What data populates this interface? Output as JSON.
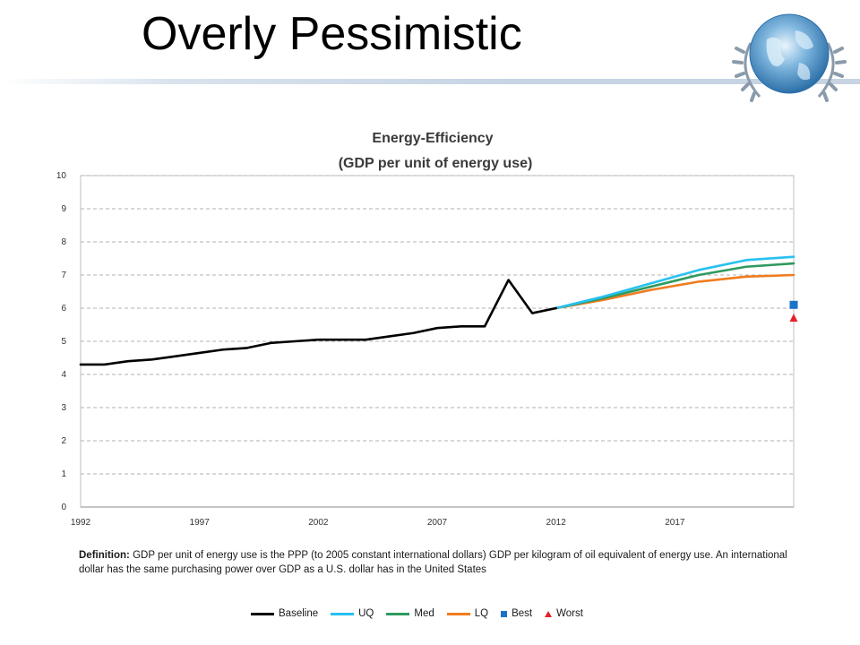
{
  "slide": {
    "title": "Overly Pessimistic"
  },
  "chart_data": {
    "type": "line",
    "title": "Energy-Efficiency",
    "subtitle": "(GDP per unit of energy use)",
    "xlabel": "",
    "ylabel": "",
    "ylim": [
      0,
      10
    ],
    "xlim": [
      1992,
      2022
    ],
    "yticks": [
      0,
      1,
      2,
      3,
      4,
      5,
      6,
      7,
      8,
      9,
      10
    ],
    "xticks": [
      1992,
      1997,
      2002,
      2007,
      2012,
      2017
    ],
    "grid": "horizontal dashed",
    "series": [
      {
        "name": "Baseline",
        "color": "#000000",
        "x": [
          1992,
          1993,
          1994,
          1995,
          1996,
          1997,
          1998,
          1999,
          2000,
          2001,
          2002,
          2003,
          2004,
          2005,
          2006,
          2007,
          2008,
          2009,
          2010,
          2011,
          2012
        ],
        "y": [
          4.3,
          4.3,
          4.4,
          4.45,
          4.55,
          4.65,
          4.75,
          4.8,
          4.95,
          5.0,
          5.05,
          5.05,
          5.05,
          5.15,
          5.25,
          5.4,
          5.45,
          5.45,
          6.85,
          5.85,
          6.0
        ]
      },
      {
        "name": "UQ",
        "color": "#27c1f0",
        "x": [
          2012,
          2014,
          2016,
          2018,
          2020,
          2022
        ],
        "y": [
          6.0,
          6.35,
          6.75,
          7.15,
          7.45,
          7.55
        ]
      },
      {
        "name": "Med",
        "color": "#2e9a5e",
        "x": [
          2012,
          2014,
          2016,
          2018,
          2020,
          2022
        ],
        "y": [
          6.0,
          6.3,
          6.65,
          7.0,
          7.25,
          7.35
        ]
      },
      {
        "name": "LQ",
        "color": "#f07c1e",
        "x": [
          2012,
          2014,
          2016,
          2018,
          2020,
          2022
        ],
        "y": [
          6.0,
          6.25,
          6.55,
          6.8,
          6.95,
          7.0
        ]
      },
      {
        "name": "Best",
        "color": "#1b73c8",
        "marker": "square",
        "x": [
          2022
        ],
        "y": [
          6.1
        ]
      },
      {
        "name": "Worst",
        "color": "#e8202a",
        "marker": "triangle",
        "x": [
          2022
        ],
        "y": [
          5.7
        ]
      }
    ],
    "legend_position": "bottom"
  },
  "definition": {
    "label": "Definition:",
    "text": "GDP per unit of energy use is the PPP (to 2005 constant international dollars) GDP per kilogram of oil equivalent of energy use. An international dollar has the same purchasing power over GDP as a U.S. dollar has in the United States"
  },
  "logo": {
    "icon": "un-globe-emblem-icon"
  }
}
